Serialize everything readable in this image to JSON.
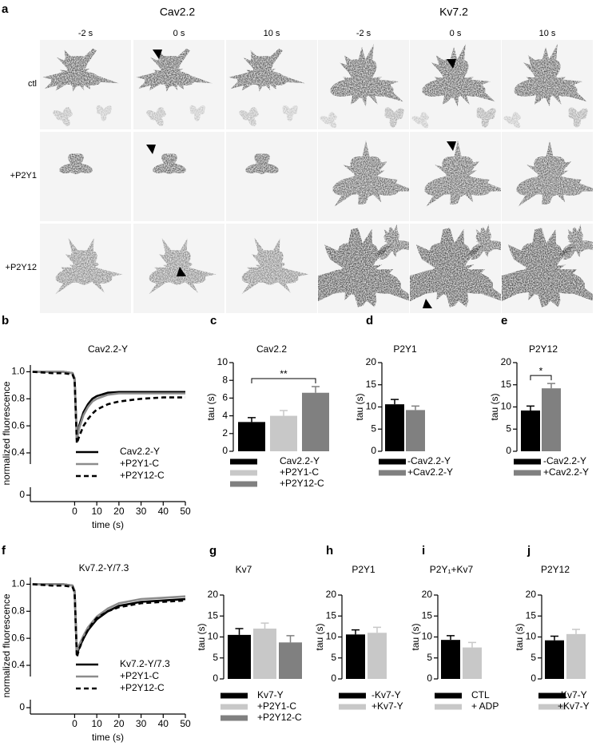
{
  "panel_labels": [
    "a",
    "b",
    "c",
    "d",
    "e",
    "f",
    "g",
    "h",
    "i",
    "j"
  ],
  "images": {
    "groups": [
      "Cav2.2",
      "Kv7.2"
    ],
    "timepoints": [
      "-2 s",
      "0 s",
      "10 s",
      "-2 s",
      "0 s",
      "10 s"
    ],
    "rows": [
      "ctl",
      "+P2Y1",
      "+P2Y12"
    ]
  },
  "chart_data": [
    {
      "type": "line",
      "title": "Cav2.2-Y",
      "xlabel": "time (s)",
      "ylabel": "normalized fluorescence",
      "x": [
        -19,
        -10,
        -5,
        -1,
        0,
        1,
        2,
        4,
        6,
        8,
        10,
        15,
        20,
        30,
        40,
        50
      ],
      "xlim": [
        -20,
        50
      ],
      "xticks": [
        0,
        10,
        20,
        30,
        40,
        50
      ],
      "ylim": [
        0.4,
        1.05
      ],
      "yticks": [
        0,
        0.4,
        0.6,
        0.8,
        {
          "value": 1,
          "label": "1.0"
        }
      ],
      "broken_y_axis": true,
      "series": [
        {
          "name": "Cav2.2-Y",
          "color": "#000000",
          "line_style": "solid",
          "values": [
            1.0,
            1.0,
            1.0,
            0.99,
            0.95,
            0.5,
            0.6,
            0.7,
            0.76,
            0.8,
            0.82,
            0.845,
            0.85,
            0.85,
            0.85,
            0.85
          ]
        },
        {
          "name": "+P2Y1-C",
          "color": "#8c8c8c",
          "line_style": "solid",
          "values": [
            1.0,
            1.0,
            1.0,
            0.99,
            0.95,
            0.5,
            0.58,
            0.68,
            0.74,
            0.78,
            0.8,
            0.83,
            0.84,
            0.84,
            0.84,
            0.84
          ]
        },
        {
          "name": "+P2Y12-C",
          "color": "#000000",
          "line_style": "dashed",
          "values": [
            1.0,
            0.99,
            0.99,
            0.98,
            0.94,
            0.47,
            0.52,
            0.6,
            0.65,
            0.69,
            0.72,
            0.76,
            0.78,
            0.8,
            0.81,
            0.81
          ]
        }
      ]
    },
    {
      "type": "bar",
      "title": "Cav2.2",
      "ylabel": "tau (s)",
      "ylim": [
        0,
        10
      ],
      "yticks": [
        0,
        2,
        4,
        6,
        8,
        10
      ],
      "series": [
        {
          "name": "Cav2.2-Y",
          "color": "#000000",
          "values": [
            3.3
          ],
          "errors": [
            0.5
          ]
        },
        {
          "name": "+P2Y1-C",
          "color": "#c8c8c8",
          "values": [
            4.0
          ],
          "errors": [
            0.6
          ]
        },
        {
          "name": "+P2Y12-C",
          "color": "#808080",
          "values": [
            6.6
          ],
          "errors": [
            0.7
          ]
        }
      ],
      "significance": {
        "text": "**",
        "series": [
          0,
          2
        ]
      }
    },
    {
      "type": "bar",
      "title": "P2Y1",
      "ylabel": "tau (s)",
      "ylim": [
        0,
        20
      ],
      "yticks": [
        0,
        5,
        10,
        15,
        20
      ],
      "series": [
        {
          "name": "-Cav2.2-Y",
          "color": "#000000",
          "values": [
            10.6
          ],
          "errors": [
            1.1
          ]
        },
        {
          "name": "+Cav2.2-Y",
          "color": "#808080",
          "values": [
            9.3
          ],
          "errors": [
            0.9
          ]
        }
      ]
    },
    {
      "type": "bar",
      "title": "P2Y12",
      "ylabel": "tau (s)",
      "ylim": [
        0,
        20
      ],
      "yticks": [
        0,
        5,
        10,
        15,
        20
      ],
      "series": [
        {
          "name": "-Cav2.2-Y",
          "color": "#000000",
          "values": [
            9.2
          ],
          "errors": [
            1.0
          ]
        },
        {
          "name": "+Cav2.2-Y",
          "color": "#808080",
          "values": [
            14.2
          ],
          "errors": [
            1.1
          ]
        }
      ],
      "significance": {
        "text": "*",
        "series": [
          0,
          1
        ]
      }
    },
    {
      "type": "line",
      "title": "Kv7.2-Y/7.3",
      "xlabel": "time (s)",
      "ylabel": "normalized fluorescence",
      "x": [
        -19,
        -10,
        -5,
        -1,
        0,
        1,
        2,
        4,
        6,
        8,
        10,
        15,
        20,
        30,
        40,
        50
      ],
      "xlim": [
        -20,
        50
      ],
      "xticks": [
        0,
        10,
        20,
        30,
        40,
        50
      ],
      "ylim": [
        0.4,
        1.05
      ],
      "yticks": [
        0,
        0.4,
        0.6,
        0.8,
        {
          "value": 1,
          "label": "1.0"
        }
      ],
      "broken_y_axis": true,
      "series": [
        {
          "name": "Kv7.2-Y/7.3",
          "color": "#000000",
          "line_style": "solid",
          "values": [
            1.0,
            1.0,
            1.0,
            0.99,
            0.95,
            0.48,
            0.53,
            0.6,
            0.66,
            0.7,
            0.74,
            0.8,
            0.84,
            0.87,
            0.88,
            0.89
          ]
        },
        {
          "name": "+P2Y1-C",
          "color": "#8c8c8c",
          "line_style": "solid",
          "values": [
            1.0,
            1.0,
            1.0,
            0.99,
            0.95,
            0.5,
            0.55,
            0.62,
            0.68,
            0.72,
            0.76,
            0.82,
            0.86,
            0.89,
            0.9,
            0.91
          ]
        },
        {
          "name": "+P2Y12-C",
          "color": "#000000",
          "line_style": "dashed",
          "values": [
            1.0,
            0.99,
            0.99,
            0.98,
            0.94,
            0.46,
            0.52,
            0.6,
            0.66,
            0.71,
            0.75,
            0.8,
            0.83,
            0.86,
            0.87,
            0.88
          ]
        }
      ]
    },
    {
      "type": "bar",
      "title": "Kv7",
      "ylabel": "tau (s)",
      "ylim": [
        0,
        20
      ],
      "yticks": [
        0,
        5,
        10,
        15,
        20
      ],
      "series": [
        {
          "name": "Kv7-Y",
          "color": "#000000",
          "values": [
            10.5
          ],
          "errors": [
            1.5
          ]
        },
        {
          "name": "+P2Y1-C",
          "color": "#c8c8c8",
          "values": [
            12.0
          ],
          "errors": [
            1.3
          ]
        },
        {
          "name": "+P2Y12-C",
          "color": "#808080",
          "values": [
            8.7
          ],
          "errors": [
            1.6
          ]
        }
      ]
    },
    {
      "type": "bar",
      "title": "P2Y1",
      "ylabel": "tau (s)",
      "ylim": [
        0,
        20
      ],
      "yticks": [
        0,
        5,
        10,
        15,
        20
      ],
      "series": [
        {
          "name": "-Kv7-Y",
          "color": "#000000",
          "values": [
            10.6
          ],
          "errors": [
            1.1
          ]
        },
        {
          "name": "+Kv7-Y",
          "color": "#c8c8c8",
          "values": [
            11.0
          ],
          "errors": [
            1.3
          ]
        }
      ]
    },
    {
      "type": "bar",
      "title": "P2Y₁+Kv7",
      "ylabel": "tau (s)",
      "ylim": [
        0,
        20
      ],
      "yticks": [
        0,
        5,
        10,
        15,
        20
      ],
      "series": [
        {
          "name": "CTL",
          "color": "#000000",
          "values": [
            9.3
          ],
          "errors": [
            1.0
          ]
        },
        {
          "name": "+ ADP",
          "color": "#c8c8c8",
          "values": [
            7.5
          ],
          "errors": [
            1.2
          ]
        }
      ]
    },
    {
      "type": "bar",
      "title": "P2Y12",
      "ylabel": "tau (s)",
      "ylim": [
        0,
        20
      ],
      "yticks": [
        0,
        5,
        10,
        15,
        20
      ],
      "series": [
        {
          "name": "-Kv7-Y",
          "color": "#000000",
          "values": [
            9.2
          ],
          "errors": [
            1.0
          ]
        },
        {
          "name": "+Kv7-Y",
          "color": "#c8c8c8",
          "values": [
            10.7
          ],
          "errors": [
            1.1
          ]
        }
      ]
    }
  ]
}
